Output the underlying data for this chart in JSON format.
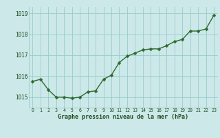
{
  "x": [
    0,
    1,
    2,
    3,
    4,
    5,
    6,
    7,
    8,
    9,
    10,
    11,
    12,
    13,
    14,
    15,
    16,
    17,
    18,
    19,
    20,
    21,
    22,
    23
  ],
  "y": [
    1015.75,
    1015.85,
    1015.35,
    1015.0,
    1015.0,
    1014.95,
    1015.0,
    1015.25,
    1015.3,
    1015.85,
    1016.05,
    1016.65,
    1016.95,
    1017.1,
    1017.25,
    1017.3,
    1017.3,
    1017.45,
    1017.65,
    1017.75,
    1018.15,
    1018.15,
    1018.25,
    1018.9
  ],
  "line_color": "#2d6a2d",
  "marker_color": "#2d6a2d",
  "bg_color": "#cce8e8",
  "grid_color": "#99cccc",
  "xlabel": "Graphe pression niveau de la mer (hPa)",
  "xlabel_color": "#1a4a1a",
  "tick_color": "#1a4a1a",
  "ylim": [
    1014.5,
    1019.3
  ],
  "yticks": [
    1015,
    1016,
    1017,
    1018,
    1019
  ],
  "xticks": [
    0,
    1,
    2,
    3,
    4,
    5,
    6,
    7,
    8,
    9,
    10,
    11,
    12,
    13,
    14,
    15,
    16,
    17,
    18,
    19,
    20,
    21,
    22,
    23
  ],
  "marker_size": 2.5,
  "line_width": 1.0
}
